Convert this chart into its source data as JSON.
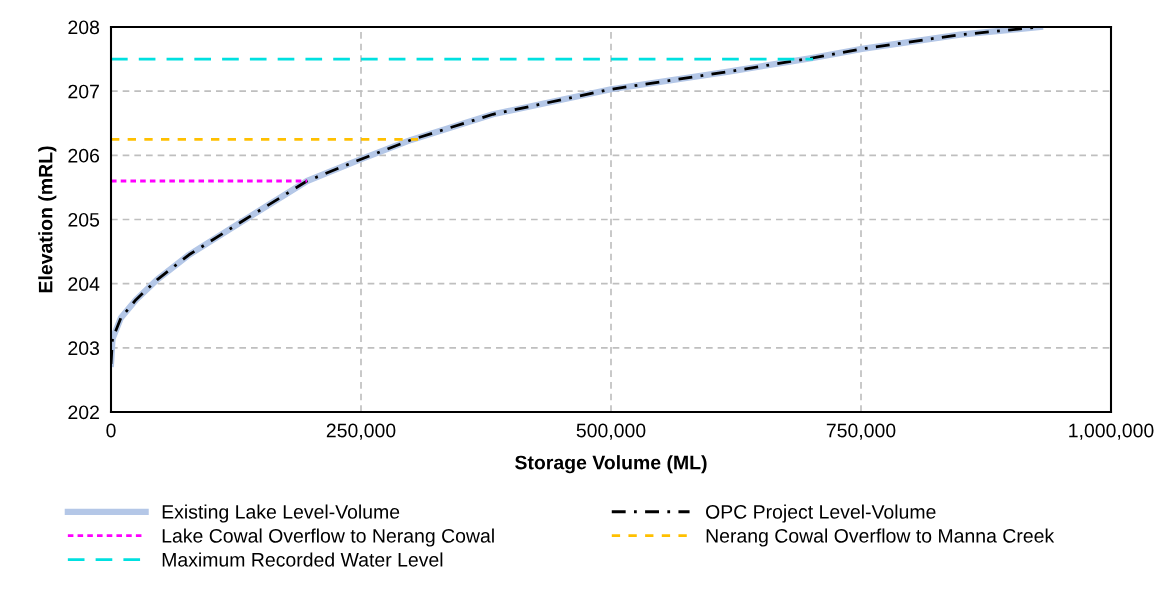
{
  "chart_data": {
    "type": "line",
    "xlabel": "Storage Volume (ML)",
    "ylabel": "Elevation (mRL)",
    "xlim": [
      0,
      1000000
    ],
    "xticks": [
      0,
      {
        "value": 250000,
        "label": "250,000"
      },
      {
        "value": 500000,
        "label": "500,000"
      },
      {
        "value": 750000,
        "label": "750,000"
      },
      {
        "value": 1000000,
        "label": "1,000,000"
      }
    ],
    "ylim": [
      202,
      208
    ],
    "yticks": [
      202,
      203,
      204,
      205,
      206,
      207,
      208
    ],
    "grid": true,
    "legend": "bottom",
    "marker": "none",
    "series": [
      {
        "name": "Existing Lake Level-Volume",
        "color": "#b4c7e7",
        "line_style": "solid",
        "x": [
          0,
          1500,
          10000,
          25000,
          46000,
          78000,
          132000,
          196000,
          250000,
          300000,
          382000,
          500000,
          616000,
          702000,
          751000,
          849000,
          929000
        ],
        "values": [
          202.75,
          203.14,
          203.47,
          203.75,
          204.06,
          204.45,
          204.98,
          205.6,
          205.94,
          206.24,
          206.64,
          207.03,
          207.3,
          207.52,
          207.66,
          207.88,
          208.0
        ]
      },
      {
        "name": "OPC Project Level-Volume",
        "color": "#000000",
        "line_style": "dashdot",
        "x": [
          0,
          1500,
          10000,
          25000,
          46000,
          78000,
          132000,
          196000,
          250000,
          300000,
          382000,
          500000,
          616000,
          702000,
          751000,
          849000,
          929000
        ],
        "values": [
          202.75,
          203.14,
          203.47,
          203.75,
          204.06,
          204.45,
          204.98,
          205.6,
          205.94,
          206.24,
          206.64,
          207.03,
          207.3,
          207.52,
          207.66,
          207.88,
          208.0
        ]
      },
      {
        "name": "Lake Cowal Overflow to Nerang Cowal",
        "color": "#ff00ff",
        "line_style": "dotted",
        "x": [
          0,
          196000
        ],
        "values": [
          205.6,
          205.6
        ]
      },
      {
        "name": "Nerang Cowal Overflow to Manna Creek",
        "color": "#ffc000",
        "line_style": "dashed",
        "x": [
          0,
          307000
        ],
        "values": [
          206.25,
          206.25
        ]
      },
      {
        "name": "Maximum Recorded Water Level",
        "color": "#00e0e0",
        "line_style": "longdash",
        "x": [
          0,
          702000
        ],
        "values": [
          207.5,
          207.5
        ]
      }
    ]
  }
}
